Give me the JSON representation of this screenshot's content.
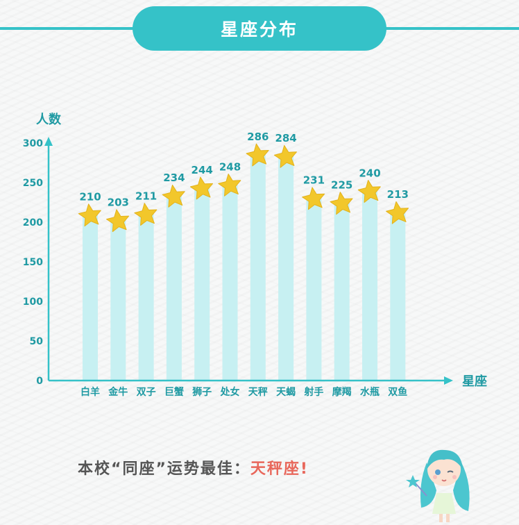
{
  "page": {
    "title": "星座分布",
    "footer_prefix": "本校“同座”运势最佳：",
    "footer_highlight": "天秤座!"
  },
  "chart_data": {
    "type": "bar",
    "title": "星座分布",
    "ylabel": "人数",
    "xlabel": "星座",
    "categories": [
      "白羊",
      "金牛",
      "双子",
      "巨蟹",
      "狮子",
      "处女",
      "天秤",
      "天蝎",
      "射手",
      "摩羯",
      "水瓶",
      "双鱼"
    ],
    "values": [
      210,
      203,
      211,
      234,
      244,
      248,
      286,
      284,
      231,
      225,
      240,
      213
    ],
    "ylim": [
      0,
      300
    ],
    "yticks": [
      0,
      50,
      100,
      150,
      200,
      250,
      300
    ],
    "grid": false,
    "legend": "none",
    "marker": "star"
  },
  "colors": {
    "accent": "#35c2c8",
    "bar": "#c7f0f2",
    "star": "#f2c72b",
    "label": "#1f9aa3",
    "highlight": "#e8675b"
  }
}
